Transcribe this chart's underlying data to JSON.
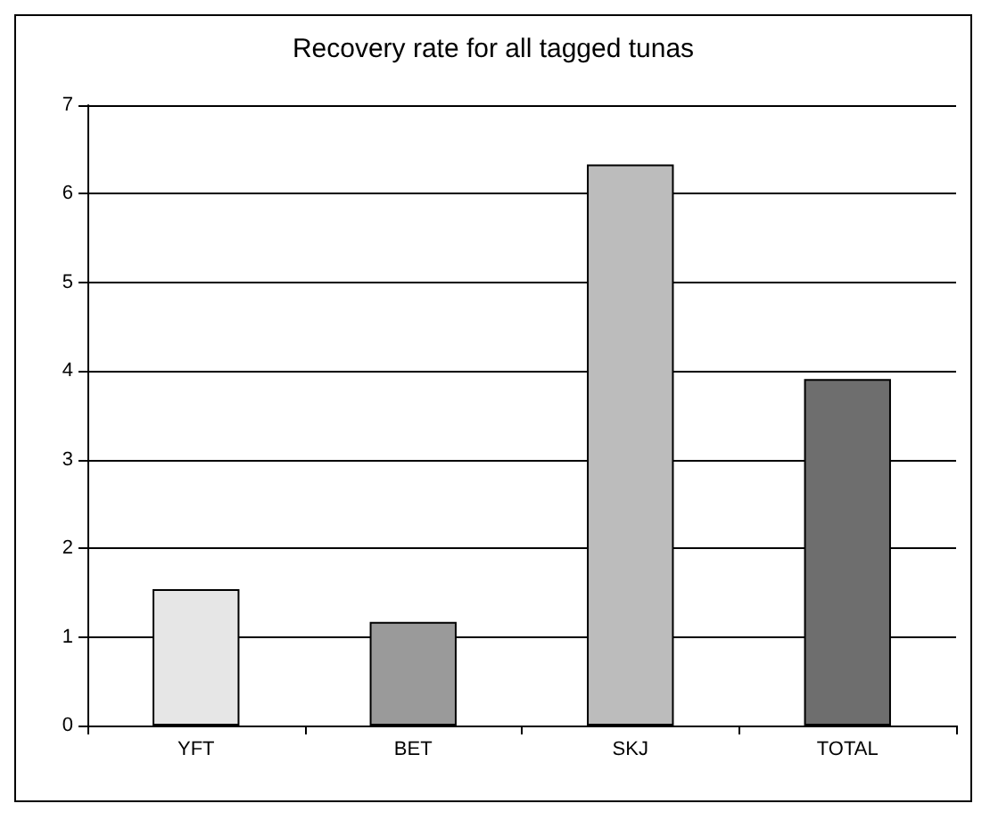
{
  "chart_data": {
    "type": "bar",
    "title": "Recovery rate for all tagged tunas",
    "categories": [
      "YFT",
      "BET",
      "SKJ",
      "TOTAL"
    ],
    "values": [
      1.54,
      1.17,
      6.33,
      3.91
    ],
    "colors": [
      "#e6e6e6",
      "#9a9a9a",
      "#bcbcbc",
      "#6e6e6e"
    ],
    "ylim": [
      0,
      7
    ],
    "yticks": [
      0,
      1,
      2,
      3,
      4,
      5,
      6,
      7
    ],
    "grid": "y"
  }
}
